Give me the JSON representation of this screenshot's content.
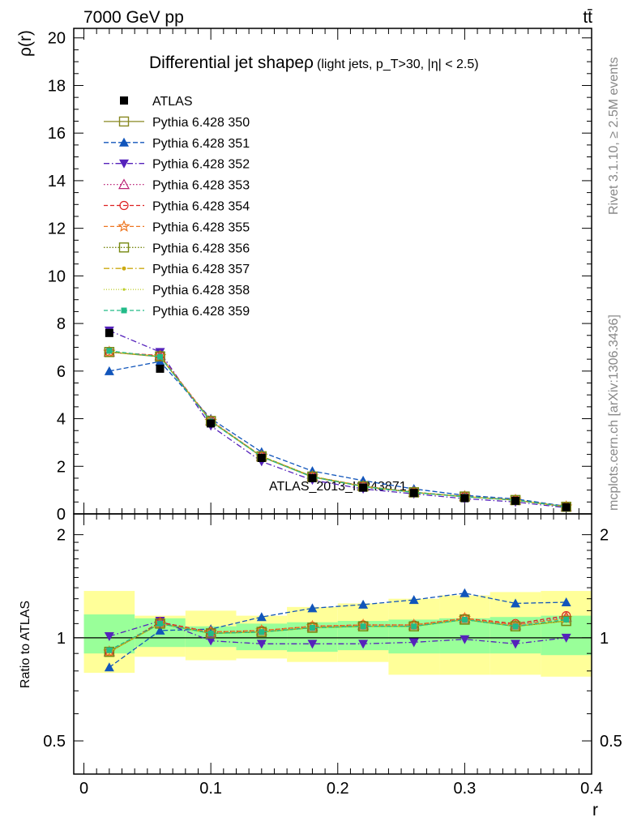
{
  "header": {
    "energy_label": "7000 GeV pp",
    "process_label": "tt̄"
  },
  "side_labels": {
    "rivet": "Rivet 3.1.10, ≥ 2.5M events",
    "mcplots": "mcplots.cern.ch [arXiv:1306.3436]"
  },
  "watermark": "ATLAS_2013_I1243871",
  "chart_data": [
    {
      "type": "line",
      "title": "Differential jet shapeρ",
      "subtitle": "(light jets, p_T>30, |η| < 2.5)",
      "xlabel": "r",
      "ylabel": "ρ(r)",
      "xlim": [
        -0.008,
        0.4
      ],
      "ylim": [
        0,
        20.4
      ],
      "xticks": [
        0,
        0.1,
        0.2,
        0.3,
        0.4
      ],
      "xtick_labels": [
        "0",
        "0.1",
        "0.2",
        "0.3",
        "0.4"
      ],
      "yticks": [
        0,
        2,
        4,
        6,
        8,
        10,
        12,
        14,
        16,
        18,
        20
      ],
      "ytick_labels": [
        "0",
        "2",
        "4",
        "6",
        "8",
        "10",
        "12",
        "14",
        "16",
        "18",
        "20"
      ],
      "legend_position": "top-left",
      "x": [
        0.02,
        0.06,
        0.1,
        0.14,
        0.18,
        0.22,
        0.26,
        0.3,
        0.34,
        0.38
      ],
      "data": {
        "name": "ATLAS",
        "color": "#000000",
        "values": [
          7.6,
          6.1,
          3.8,
          2.35,
          1.5,
          1.1,
          0.88,
          0.66,
          0.55,
          0.28
        ]
      },
      "series": [
        {
          "name": "Pythia 6.428 350",
          "color": "#888822",
          "dash": "none",
          "marker": "square-open",
          "values": [
            6.8,
            6.6,
            3.9,
            2.4,
            1.55,
            1.15,
            0.9,
            0.72,
            0.58,
            0.3
          ]
        },
        {
          "name": "Pythia 6.428 351",
          "color": "#1155bb",
          "dash": "6,3",
          "marker": "triangle-up",
          "values": [
            6.0,
            6.4,
            4.0,
            2.6,
            1.8,
            1.4,
            1.05,
            0.78,
            0.63,
            0.32
          ]
        },
        {
          "name": "Pythia 6.428 352",
          "color": "#5522bb",
          "dash": "7,3,1.5,3",
          "marker": "triangle-down",
          "values": [
            7.7,
            6.8,
            3.7,
            2.2,
            1.42,
            1.05,
            0.84,
            0.64,
            0.5,
            0.26
          ]
        },
        {
          "name": "Pythia 6.428 353",
          "color": "#bb2277",
          "dash": "1.5,2.5",
          "marker": "triangle-open",
          "values": [
            6.8,
            6.65,
            3.92,
            2.42,
            1.57,
            1.17,
            0.91,
            0.73,
            0.58,
            0.3
          ]
        },
        {
          "name": "Pythia 6.428 354",
          "color": "#dd2222",
          "dash": "5,3",
          "marker": "circle-open",
          "values": [
            6.8,
            6.65,
            3.92,
            2.42,
            1.57,
            1.17,
            0.91,
            0.73,
            0.58,
            0.3
          ]
        },
        {
          "name": "Pythia 6.428 355",
          "color": "#ee7722",
          "dash": "5,3",
          "marker": "star-open",
          "values": [
            6.8,
            6.62,
            3.9,
            2.42,
            1.57,
            1.16,
            0.91,
            0.73,
            0.58,
            0.3
          ]
        },
        {
          "name": "Pythia 6.428 356",
          "color": "#778811",
          "dash": "1.5,2",
          "marker": "square-open",
          "values": [
            6.8,
            6.62,
            3.9,
            2.42,
            1.57,
            1.16,
            0.91,
            0.73,
            0.58,
            0.3
          ]
        },
        {
          "name": "Pythia 6.428 357",
          "color": "#ccaa11",
          "dash": "7,3,1.5,3",
          "marker": "dot",
          "values": [
            6.8,
            6.62,
            3.9,
            2.42,
            1.57,
            1.16,
            0.91,
            0.73,
            0.58,
            0.3
          ]
        },
        {
          "name": "Pythia 6.428 358",
          "color": "#bbcc22",
          "dash": "1,2",
          "marker": "dot-small",
          "values": [
            6.8,
            6.62,
            3.9,
            2.42,
            1.57,
            1.16,
            0.91,
            0.73,
            0.58,
            0.3
          ]
        },
        {
          "name": "Pythia 6.428 359",
          "color": "#22bb88",
          "dash": "5,3",
          "marker": "square-solid",
          "values": [
            6.85,
            6.6,
            3.88,
            2.4,
            1.55,
            1.15,
            0.9,
            0.72,
            0.58,
            0.3
          ]
        }
      ]
    },
    {
      "type": "line",
      "ylabel": "Ratio to ATLAS",
      "xlabel": "r",
      "ylim_log": [
        0.4,
        2.3
      ],
      "yticks": [
        0.5,
        1,
        2
      ],
      "ytick_labels": [
        "0.5",
        "1",
        "2"
      ],
      "xticks": [
        0,
        0.1,
        0.2,
        0.3,
        0.4
      ],
      "xtick_labels": [
        "0",
        "0.1",
        "0.2",
        "0.3",
        "0.4"
      ],
      "bins": [
        [
          0,
          0.04
        ],
        [
          0.04,
          0.08
        ],
        [
          0.08,
          0.12
        ],
        [
          0.12,
          0.16
        ],
        [
          0.16,
          0.2
        ],
        [
          0.2,
          0.24
        ],
        [
          0.24,
          0.28
        ],
        [
          0.28,
          0.32
        ],
        [
          0.32,
          0.36
        ],
        [
          0.36,
          0.4
        ]
      ],
      "band_green_color": "#99ff99",
      "band_yellow_color": "#ffff99",
      "band_green": [
        [
          0.9,
          1.17
        ],
        [
          0.94,
          1.14
        ],
        [
          0.94,
          1.08
        ],
        [
          0.92,
          1.1
        ],
        [
          0.91,
          1.11
        ],
        [
          0.92,
          1.12
        ],
        [
          0.9,
          1.13
        ],
        [
          0.9,
          1.14
        ],
        [
          0.9,
          1.15
        ],
        [
          0.89,
          1.16
        ]
      ],
      "band_yellow": [
        [
          0.79,
          1.37
        ],
        [
          0.88,
          1.16
        ],
        [
          0.86,
          1.2
        ],
        [
          0.87,
          1.16
        ],
        [
          0.85,
          1.23
        ],
        [
          0.85,
          1.26
        ],
        [
          0.78,
          1.3
        ],
        [
          0.78,
          1.33
        ],
        [
          0.78,
          1.36
        ],
        [
          0.77,
          1.37
        ]
      ],
      "series": [
        {
          "name": "Pythia 6.428 350",
          "values": [
            0.91,
            1.1,
            1.03,
            1.04,
            1.07,
            1.08,
            1.08,
            1.13,
            1.08,
            1.12
          ]
        },
        {
          "name": "Pythia 6.428 351",
          "values": [
            0.82,
            1.05,
            1.06,
            1.15,
            1.22,
            1.25,
            1.29,
            1.35,
            1.26,
            1.27
          ]
        },
        {
          "name": "Pythia 6.428 352",
          "values": [
            1.01,
            1.12,
            0.98,
            0.96,
            0.96,
            0.96,
            0.97,
            0.99,
            0.96,
            1.0
          ]
        },
        {
          "name": "Pythia 6.428 353",
          "values": [
            0.91,
            1.11,
            1.04,
            1.05,
            1.08,
            1.09,
            1.09,
            1.14,
            1.09,
            1.15
          ]
        },
        {
          "name": "Pythia 6.428 354",
          "values": [
            0.91,
            1.11,
            1.04,
            1.05,
            1.08,
            1.09,
            1.09,
            1.14,
            1.1,
            1.16
          ]
        },
        {
          "name": "Pythia 6.428 355",
          "values": [
            0.91,
            1.1,
            1.04,
            1.05,
            1.08,
            1.09,
            1.09,
            1.14,
            1.09,
            1.14
          ]
        },
        {
          "name": "Pythia 6.428 356",
          "values": [
            0.91,
            1.1,
            1.03,
            1.04,
            1.07,
            1.08,
            1.08,
            1.13,
            1.08,
            1.12
          ]
        },
        {
          "name": "Pythia 6.428 357",
          "values": [
            0.91,
            1.1,
            1.03,
            1.04,
            1.07,
            1.08,
            1.08,
            1.13,
            1.08,
            1.12
          ]
        },
        {
          "name": "Pythia 6.428 358",
          "values": [
            0.91,
            1.1,
            1.03,
            1.04,
            1.07,
            1.08,
            1.08,
            1.13,
            1.08,
            1.12
          ]
        },
        {
          "name": "Pythia 6.428 359",
          "values": [
            0.92,
            1.1,
            1.03,
            1.04,
            1.07,
            1.08,
            1.08,
            1.13,
            1.08,
            1.13
          ]
        }
      ]
    }
  ]
}
